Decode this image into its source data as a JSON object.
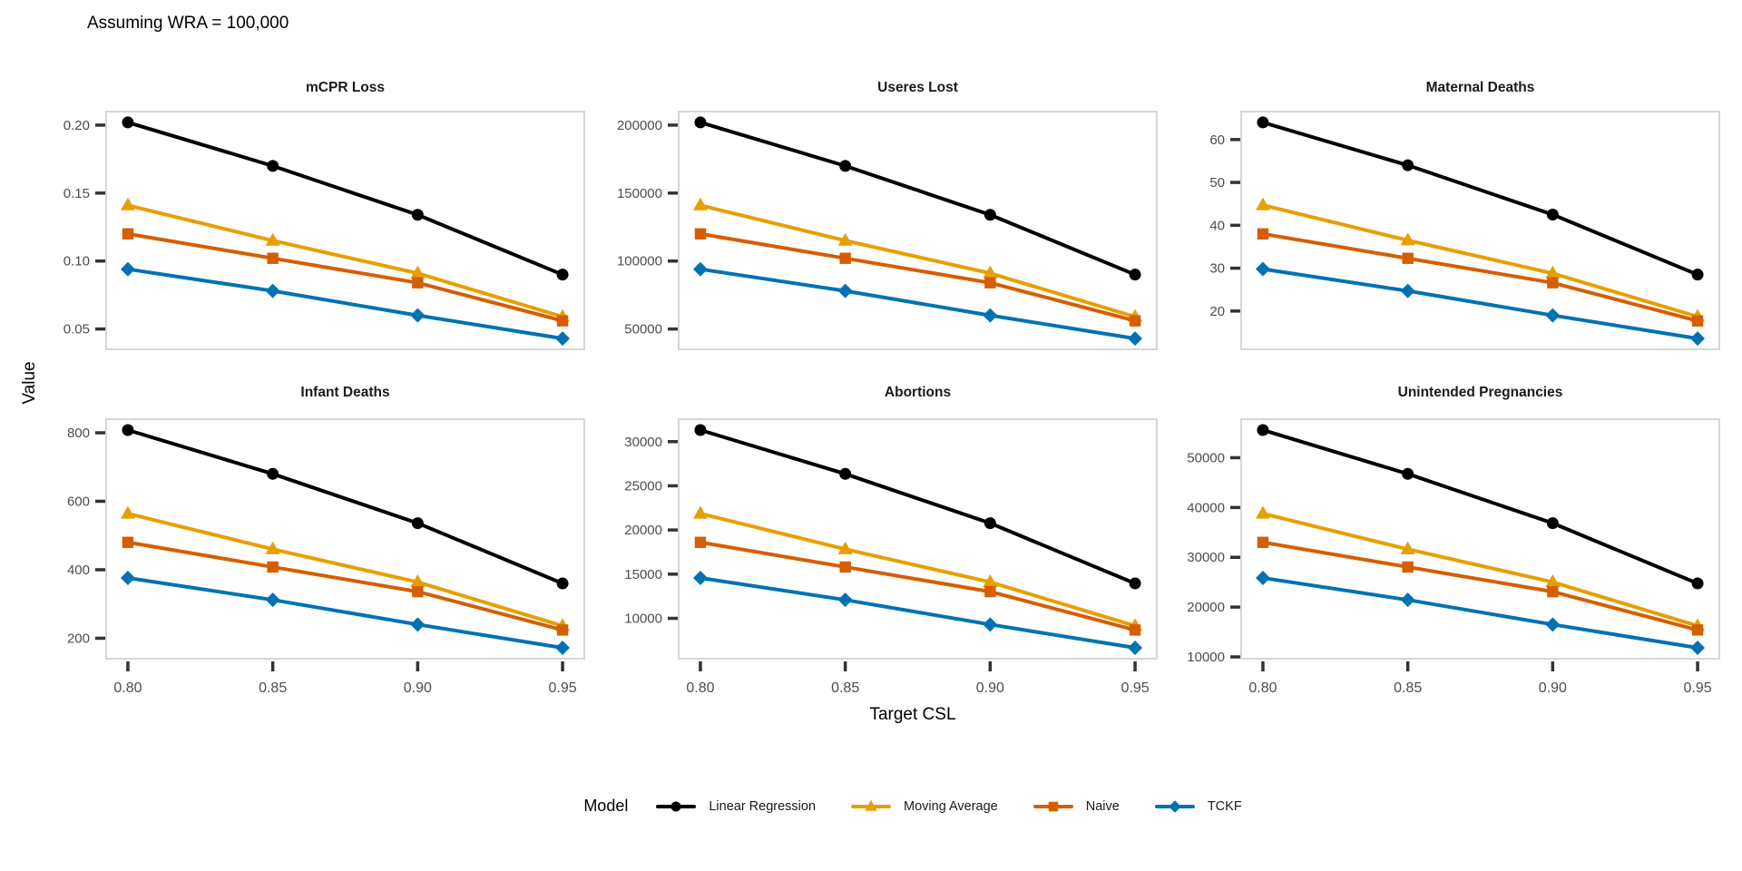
{
  "chart_data": {
    "type": "line",
    "title": "Assuming WRA = 100,000",
    "xlabel": "Target CSL",
    "ylabel": "Value",
    "grid": false,
    "facets": "2 rows x 3 cols",
    "x": [
      0.8,
      0.85,
      0.9,
      0.95
    ],
    "x_tick_labels": [
      "0.80",
      "0.85",
      "0.90",
      "0.95"
    ],
    "xlim": [
      0.7925,
      0.9575
    ],
    "legend": {
      "title": "Model",
      "position": "bottom"
    },
    "series_meta": [
      {
        "name": "Linear Regression",
        "color": "#000000",
        "marker": "circle"
      },
      {
        "name": "Moving Average",
        "color": "#E69F00",
        "marker": "triangle"
      },
      {
        "name": "Naive",
        "color": "#D55E00",
        "marker": "square"
      },
      {
        "name": "TCKF",
        "color": "#0072B2",
        "marker": "diamond"
      }
    ],
    "panels": [
      {
        "title": "mCPR Loss",
        "y_ticks": [
          0.05,
          0.1,
          0.15,
          0.2
        ],
        "y_tick_labels": [
          "0.05",
          "0.10",
          "0.15",
          "0.20"
        ],
        "series": [
          {
            "name": "Linear Regression",
            "values": [
              0.202,
              0.17,
              0.134,
              0.09
            ]
          },
          {
            "name": "Moving Average",
            "values": [
              0.141,
              0.115,
              0.091,
              0.059
            ]
          },
          {
            "name": "Naive",
            "values": [
              0.12,
              0.102,
              0.084,
              0.056
            ]
          },
          {
            "name": "TCKF",
            "values": [
              0.094,
              0.078,
              0.06,
              0.043
            ]
          }
        ]
      },
      {
        "title": "Useres Lost",
        "y_ticks": [
          50000,
          100000,
          150000,
          200000
        ],
        "y_tick_labels": [
          "50000",
          "100000",
          "150000",
          "200000"
        ],
        "series": [
          {
            "name": "Linear Regression",
            "values": [
              202000,
              170000,
              134000,
              90000
            ]
          },
          {
            "name": "Moving Average",
            "values": [
              141000,
              115000,
              91000,
              59000
            ]
          },
          {
            "name": "Naive",
            "values": [
              120000,
              102000,
              84000,
              56000
            ]
          },
          {
            "name": "TCKF",
            "values": [
              94000,
              78000,
              60000,
              43000
            ]
          }
        ]
      },
      {
        "title": "Maternal Deaths",
        "y_ticks": [
          20,
          30,
          40,
          50,
          60
        ],
        "y_tick_labels": [
          "20",
          "30",
          "40",
          "50",
          "60"
        ],
        "series": [
          {
            "name": "Linear Regression",
            "values": [
              64,
              54,
              42.5,
              28.5
            ]
          },
          {
            "name": "Moving Average",
            "values": [
              44.7,
              36.5,
              28.8,
              18.7
            ]
          },
          {
            "name": "Naive",
            "values": [
              38,
              32.3,
              26.6,
              17.7
            ]
          },
          {
            "name": "TCKF",
            "values": [
              29.8,
              24.7,
              19,
              13.6
            ]
          }
        ]
      },
      {
        "title": "Infant Deaths",
        "y_ticks": [
          200,
          400,
          600,
          800
        ],
        "y_tick_labels": [
          "200",
          "400",
          "600",
          "800"
        ],
        "series": [
          {
            "name": "Linear Regression",
            "values": [
              808,
              680,
              536,
              360
            ]
          },
          {
            "name": "Moving Average",
            "values": [
              564,
              460,
              364,
              236
            ]
          },
          {
            "name": "Naive",
            "values": [
              480,
              408,
              336,
              224
            ]
          },
          {
            "name": "TCKF",
            "values": [
              376,
              312,
              240,
              172
            ]
          }
        ]
      },
      {
        "title": "Abortions",
        "y_ticks": [
          10000,
          15000,
          20000,
          25000,
          30000
        ],
        "y_tick_labels": [
          "10000",
          "15000",
          "20000",
          "25000",
          "30000"
        ],
        "series": [
          {
            "name": "Linear Regression",
            "values": [
              31310,
              26350,
              20770,
              13950
            ]
          },
          {
            "name": "Moving Average",
            "values": [
              21855,
              17825,
              14105,
              9145
            ]
          },
          {
            "name": "Naive",
            "values": [
              18600,
              15810,
              13020,
              8680
            ]
          },
          {
            "name": "TCKF",
            "values": [
              14570,
              12090,
              9300,
              6665
            ]
          }
        ]
      },
      {
        "title": "Unintended Pregnancies",
        "y_ticks": [
          10000,
          20000,
          30000,
          40000,
          50000
        ],
        "y_tick_labels": [
          "10000",
          "20000",
          "30000",
          "40000",
          "50000"
        ],
        "series": [
          {
            "name": "Linear Regression",
            "values": [
              55550,
              46750,
              36850,
              24750
            ]
          },
          {
            "name": "Moving Average",
            "values": [
              38775,
              31625,
              25025,
              16225
            ]
          },
          {
            "name": "Naive",
            "values": [
              33000,
              28050,
              23100,
              15400
            ]
          },
          {
            "name": "TCKF",
            "values": [
              25850,
              21450,
              16500,
              11825
            ]
          }
        ]
      }
    ],
    "style": {
      "panel_border_color": "#d6d6d6",
      "tick_mark_color": "#333333",
      "tick_label_color": "#4d4d4d",
      "line_width": 4
    }
  }
}
